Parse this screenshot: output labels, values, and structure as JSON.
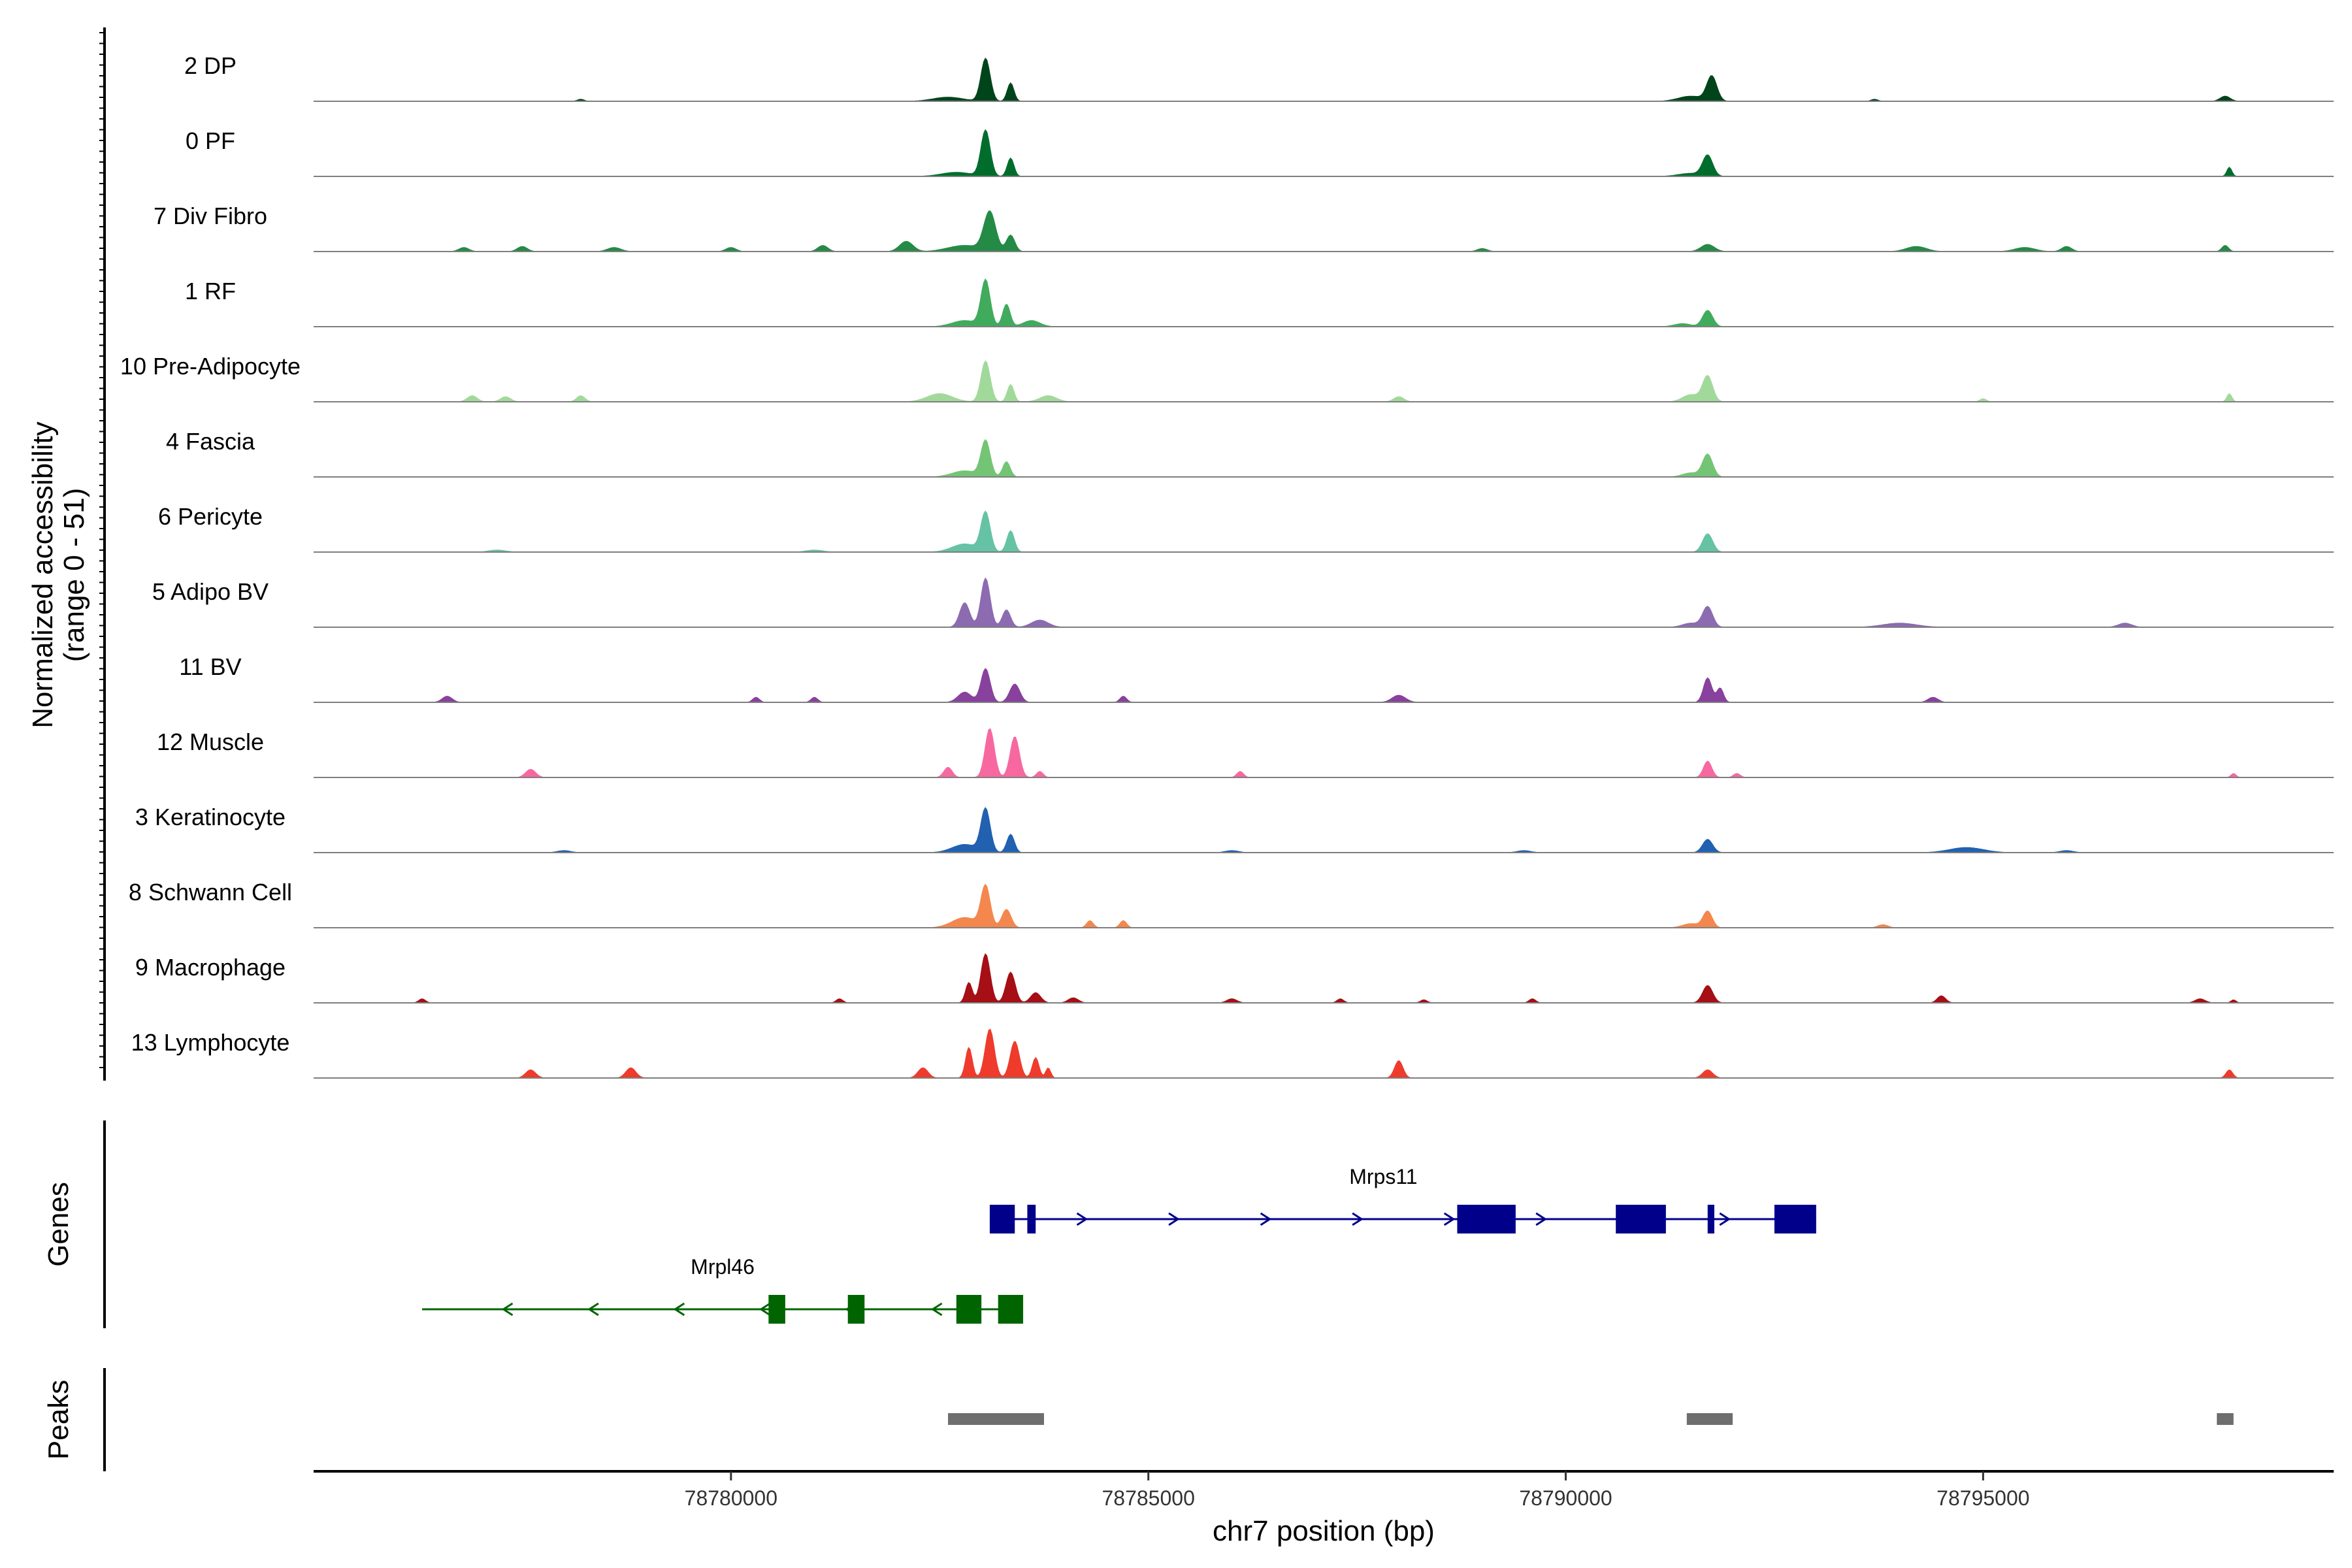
{
  "chart_data": {
    "type": "area",
    "title": "",
    "ylabel": "Normalized accessibility",
    "ylabel_range": "(range 0 - 51)",
    "ylim": [
      0,
      51
    ],
    "xlabel": "chr7 position (bp)",
    "xlim": [
      78775000,
      78799200
    ],
    "xticks": [
      78780000,
      78785000,
      78790000,
      78795000
    ],
    "xtick_labels": [
      "78780000",
      "78785000",
      "78790000",
      "78795000"
    ],
    "tracks": [
      {
        "name": "2 DP",
        "color": "#00441b",
        "peaks": [
          [
            78783050,
            42,
            55
          ],
          [
            78783350,
            18,
            40
          ],
          [
            78782600,
            4,
            180
          ],
          [
            78791750,
            24,
            60
          ],
          [
            78791500,
            5,
            150
          ],
          [
            78797900,
            5,
            60
          ],
          [
            78778200,
            2,
            40
          ],
          [
            78793700,
            2,
            40
          ]
        ]
      },
      {
        "name": "0 PF",
        "color": "#006d2c",
        "peaks": [
          [
            78783050,
            45,
            55
          ],
          [
            78783350,
            18,
            40
          ],
          [
            78782700,
            4,
            180
          ],
          [
            78791700,
            20,
            60
          ],
          [
            78791500,
            3,
            150
          ],
          [
            78797950,
            9,
            30
          ]
        ]
      },
      {
        "name": "7 Div Fibro",
        "color": "#238b45",
        "peaks": [
          [
            78783100,
            38,
            70
          ],
          [
            78783350,
            16,
            50
          ],
          [
            78782800,
            6,
            200
          ],
          [
            78782100,
            10,
            80
          ],
          [
            78781100,
            6,
            60
          ],
          [
            78776800,
            4,
            60
          ],
          [
            78777500,
            5,
            60
          ],
          [
            78778600,
            4,
            80
          ],
          [
            78780000,
            4,
            60
          ],
          [
            78791700,
            7,
            80
          ],
          [
            78794200,
            5,
            120
          ],
          [
            78795500,
            4,
            120
          ],
          [
            78796000,
            5,
            60
          ],
          [
            78789000,
            3,
            60
          ],
          [
            78797900,
            6,
            40
          ]
        ]
      },
      {
        "name": "1 RF",
        "color": "#41ab5d",
        "peaks": [
          [
            78783050,
            45,
            55
          ],
          [
            78783300,
            22,
            45
          ],
          [
            78782800,
            6,
            150
          ],
          [
            78783600,
            6,
            100
          ],
          [
            78791700,
            16,
            60
          ],
          [
            78791400,
            3,
            100
          ]
        ]
      },
      {
        "name": "10 Pre-Adipocyte",
        "color": "#a1d99b",
        "peaks": [
          [
            78783050,
            40,
            55
          ],
          [
            78783350,
            17,
            40
          ],
          [
            78782500,
            8,
            150
          ],
          [
            78783800,
            6,
            100
          ],
          [
            78776900,
            6,
            60
          ],
          [
            78777300,
            5,
            60
          ],
          [
            78778200,
            6,
            50
          ],
          [
            78791700,
            25,
            60
          ],
          [
            78791500,
            7,
            100
          ],
          [
            78788000,
            5,
            60
          ],
          [
            78797950,
            8,
            30
          ],
          [
            78795000,
            3,
            40
          ]
        ]
      },
      {
        "name": "4 Fascia",
        "color": "#74c476",
        "peaks": [
          [
            78783050,
            35,
            55
          ],
          [
            78783300,
            15,
            45
          ],
          [
            78782800,
            6,
            150
          ],
          [
            78791700,
            22,
            60
          ],
          [
            78791500,
            4,
            100
          ]
        ]
      },
      {
        "name": "6 Pericyte",
        "color": "#66c2a4",
        "peaks": [
          [
            78783050,
            38,
            55
          ],
          [
            78783350,
            21,
            45
          ],
          [
            78782800,
            8,
            150
          ],
          [
            78791700,
            18,
            60
          ],
          [
            78777200,
            2,
            100
          ],
          [
            78781000,
            2,
            100
          ]
        ]
      },
      {
        "name": "5 Adipo BV",
        "color": "#8c6bb1",
        "peaks": [
          [
            78783050,
            48,
            55
          ],
          [
            78782800,
            24,
            60
          ],
          [
            78783300,
            17,
            50
          ],
          [
            78783700,
            7,
            100
          ],
          [
            78791700,
            20,
            60
          ],
          [
            78791500,
            4,
            100
          ],
          [
            78794000,
            4,
            200
          ],
          [
            78796700,
            4,
            80
          ]
        ]
      },
      {
        "name": "11 BV",
        "color": "#88419d",
        "peaks": [
          [
            78783050,
            33,
            55
          ],
          [
            78783400,
            18,
            60
          ],
          [
            78782800,
            10,
            80
          ],
          [
            78791700,
            24,
            50
          ],
          [
            78791850,
            14,
            40
          ],
          [
            78776600,
            6,
            60
          ],
          [
            78780300,
            5,
            40
          ],
          [
            78781000,
            5,
            40
          ],
          [
            78784700,
            6,
            40
          ],
          [
            78788000,
            7,
            80
          ],
          [
            78794400,
            5,
            60
          ]
        ]
      },
      {
        "name": "12 Muscle",
        "color": "#f768a1",
        "peaks": [
          [
            78783100,
            48,
            55
          ],
          [
            78783400,
            40,
            55
          ],
          [
            78782600,
            10,
            50
          ],
          [
            78783700,
            6,
            40
          ],
          [
            78777600,
            8,
            60
          ],
          [
            78786100,
            6,
            40
          ],
          [
            78791700,
            16,
            50
          ],
          [
            78792050,
            4,
            40
          ],
          [
            78798000,
            4,
            30
          ]
        ]
      },
      {
        "name": "3 Keratinocyte",
        "color": "#2161b0",
        "peaks": [
          [
            78783050,
            42,
            55
          ],
          [
            78783350,
            18,
            45
          ],
          [
            78782800,
            8,
            150
          ],
          [
            78791700,
            13,
            60
          ],
          [
            78794800,
            5,
            200
          ],
          [
            78778000,
            2,
            80
          ],
          [
            78786000,
            2,
            80
          ],
          [
            78789500,
            2,
            80
          ],
          [
            78796000,
            2,
            80
          ]
        ]
      },
      {
        "name": "8 Schwann Cell",
        "color": "#f4874e",
        "peaks": [
          [
            78783050,
            40,
            55
          ],
          [
            78783300,
            18,
            55
          ],
          [
            78782800,
            10,
            150
          ],
          [
            78784300,
            7,
            40
          ],
          [
            78784700,
            7,
            40
          ],
          [
            78791700,
            16,
            55
          ],
          [
            78791500,
            4,
            100
          ],
          [
            78793800,
            3,
            60
          ]
        ]
      },
      {
        "name": "9 Macrophage",
        "color": "#a50f15",
        "peaks": [
          [
            78783050,
            48,
            55
          ],
          [
            78783350,
            30,
            55
          ],
          [
            78782850,
            20,
            40
          ],
          [
            78783650,
            10,
            60
          ],
          [
            78784100,
            5,
            60
          ],
          [
            78791700,
            17,
            60
          ],
          [
            78776300,
            4,
            40
          ],
          [
            78781300,
            4,
            40
          ],
          [
            78786000,
            4,
            60
          ],
          [
            78787300,
            4,
            40
          ],
          [
            78788300,
            3,
            40
          ],
          [
            78789600,
            4,
            40
          ],
          [
            78794500,
            7,
            50
          ],
          [
            78797600,
            4,
            60
          ],
          [
            78798000,
            3,
            30
          ]
        ]
      },
      {
        "name": "13 Lymphocyte",
        "color": "#ef3b2c",
        "peaks": [
          [
            78783100,
            48,
            55
          ],
          [
            78783400,
            36,
            55
          ],
          [
            78782850,
            30,
            40
          ],
          [
            78783650,
            20,
            40
          ],
          [
            78783800,
            10,
            30
          ],
          [
            78777600,
            8,
            60
          ],
          [
            78778800,
            10,
            60
          ],
          [
            78782300,
            10,
            60
          ],
          [
            78788000,
            17,
            50
          ],
          [
            78791700,
            8,
            60
          ],
          [
            78797950,
            8,
            40
          ]
        ]
      }
    ],
    "genes": [
      {
        "name": "Mrps11",
        "strand": "+",
        "color": "#00008b",
        "start": 78783100,
        "end": 78793000,
        "exons": [
          [
            78783100,
            78783400
          ],
          [
            78783550,
            78783650
          ],
          [
            78788700,
            78789400
          ],
          [
            78790600,
            78791200
          ],
          [
            78791700,
            78791780
          ],
          [
            78792500,
            78793000
          ]
        ]
      },
      {
        "name": "Mrpl46",
        "strand": "-",
        "color": "#006400",
        "start": 78776300,
        "end": 78783500,
        "exons": [
          [
            78780450,
            78780650
          ],
          [
            78781400,
            78781600
          ],
          [
            78782700,
            78783000
          ],
          [
            78783200,
            78783500
          ]
        ]
      }
    ],
    "peak_regions": [
      [
        78782600,
        78783750
      ],
      [
        78791450,
        78792000
      ],
      [
        78797800,
        78798000
      ]
    ],
    "panel_labels": {
      "genes": "Genes",
      "peaks": "Peaks"
    }
  }
}
